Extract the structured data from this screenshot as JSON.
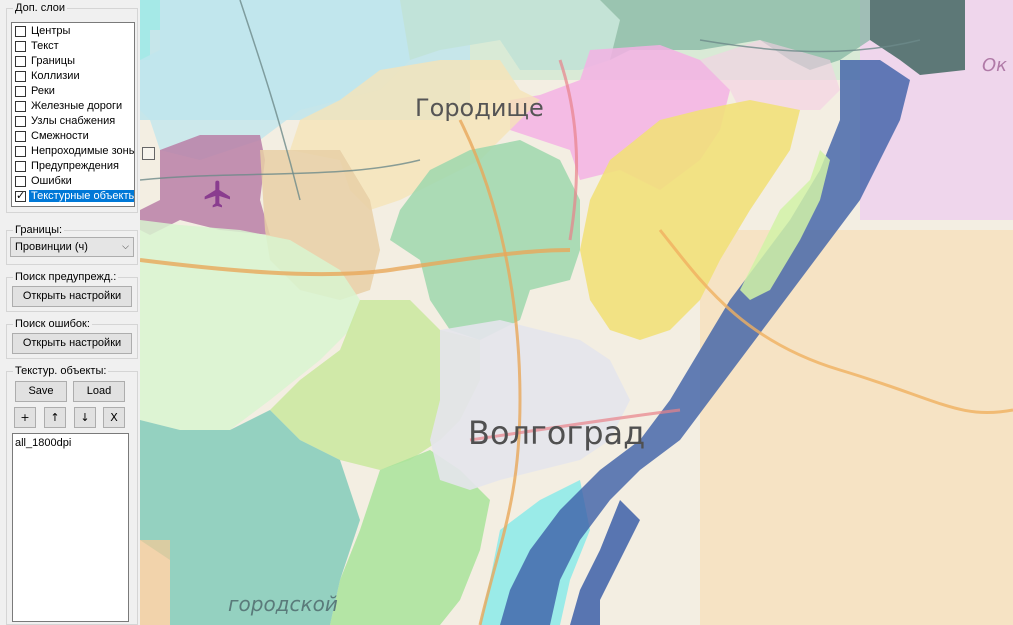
{
  "layers": {
    "title": "Доп. слои",
    "items": [
      {
        "label": "Центры",
        "checked": false
      },
      {
        "label": "Текст",
        "checked": false
      },
      {
        "label": "Границы",
        "checked": false
      },
      {
        "label": "Коллизии",
        "checked": false
      },
      {
        "label": "Реки",
        "checked": false
      },
      {
        "label": "Железные дороги",
        "checked": false
      },
      {
        "label": "Узлы снабжения",
        "checked": false
      },
      {
        "label": "Смежности",
        "checked": false
      },
      {
        "label": "Непроходимые зоны",
        "checked": false
      },
      {
        "label": "Предупреждения",
        "checked": false
      },
      {
        "label": "Ошибки",
        "checked": false
      },
      {
        "label": "Текстурные объекты",
        "checked": true,
        "selected": true
      }
    ]
  },
  "borders": {
    "title": "Границы:",
    "selected": "Провинции (ч)"
  },
  "warnings": {
    "title": "Поиск предупрежд.:",
    "button": "Открыть настройки"
  },
  "errors": {
    "title": "Поиск ошибок:",
    "button": "Открыть настройки"
  },
  "texture_objects": {
    "title": "Текстур. объекты:",
    "save": "Save",
    "load": "Load",
    "add": "+",
    "up": "↑",
    "down": "↓",
    "remove": "X",
    "entries": [
      "all_1800dpi"
    ]
  },
  "map": {
    "labels": {
      "gorodishche": "Городище",
      "volgograd": "Волгоград",
      "gorodskoy": "городской",
      "ok": "Ок"
    },
    "icon": "airplane-icon"
  }
}
